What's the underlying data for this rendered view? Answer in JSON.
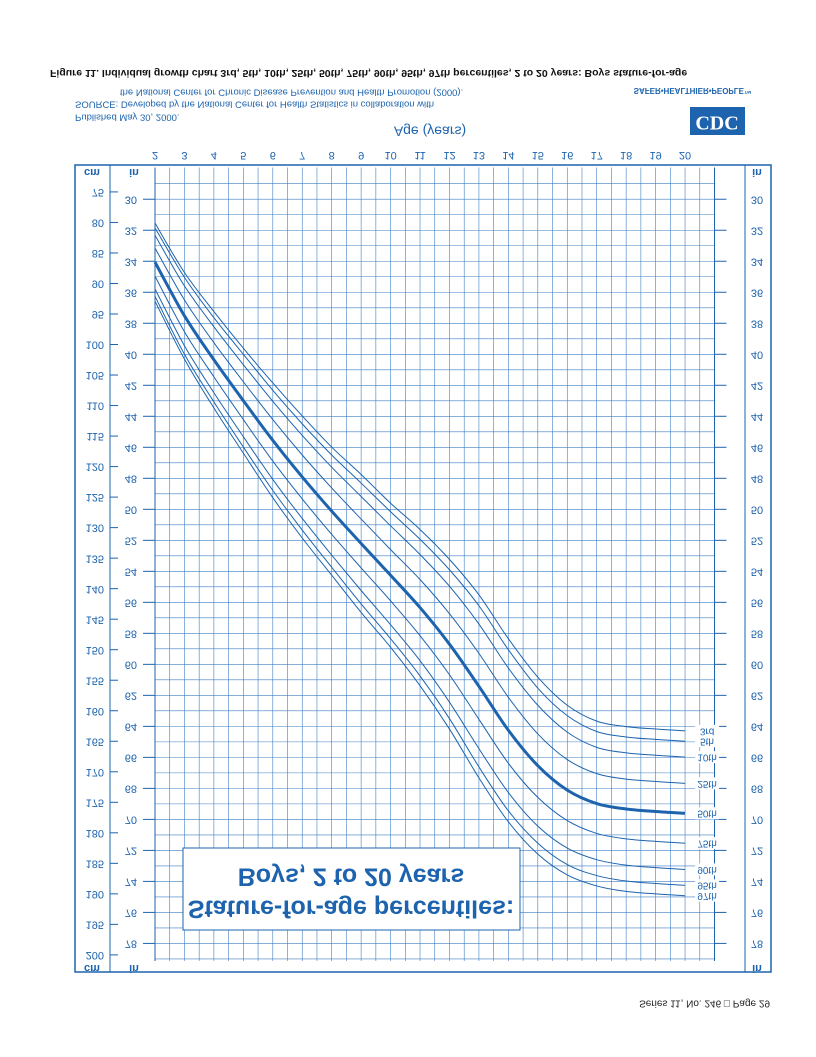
{
  "figure_caption": "Figure 11. Individual growth chart 3rd, 5th, 10th, 25th, 50th, 75th, 90th, 95th, 97th percentiles, 2 to 20 years: Boys stature-for-age",
  "published": "Published May 30, 2000.",
  "source_lines": [
    "SOURCE: Developed by the National Center for Health Statistics in collaboration with",
    "the National Center for Chronic Disease Prevention and Health Promotion (2000)."
  ],
  "logo": "CDC",
  "tagline": "SAFER•HEALTHIER•PEOPLE™",
  "footer": "Series 11, No. 246 □ Page 29",
  "chart_data": {
    "type": "line",
    "title": "Stature-for-age percentiles:",
    "subtitle": "Boys, 2 to 20 years",
    "x_label": "Age (years)",
    "y_label": "cm",
    "y2_label": "in",
    "x": [
      2,
      3,
      4,
      5,
      6,
      7,
      8,
      9,
      10,
      11,
      12,
      13,
      14,
      15,
      16,
      17,
      18,
      19,
      20
    ],
    "xlim": [
      2,
      21
    ],
    "xticks": [
      2,
      3,
      4,
      5,
      6,
      7,
      8,
      9,
      10,
      11,
      12,
      13,
      14,
      15,
      16,
      17,
      18,
      19,
      20
    ],
    "ylim": [
      71,
      201
    ],
    "yticks": [
      75,
      80,
      85,
      90,
      95,
      100,
      105,
      110,
      115,
      120,
      125,
      130,
      135,
      140,
      145,
      150,
      155,
      160,
      165,
      170,
      175,
      180,
      185,
      190,
      195,
      200
    ],
    "y2lim": [
      27.953,
      79.134
    ],
    "y2ticks": [
      30,
      32,
      34,
      36,
      38,
      40,
      42,
      44,
      46,
      48,
      50,
      52,
      54,
      56,
      58,
      60,
      62,
      64,
      66,
      68,
      70,
      72,
      74,
      76,
      78
    ],
    "grid": true,
    "series": [
      {
        "name": "3rd",
        "color": "#1d63ad",
        "line_width": 1,
        "values": [
          80.1,
          88.2,
          94.6,
          100.6,
          106.3,
          111.7,
          116.8,
          121.3,
          126.0,
          130.3,
          135.2,
          141.0,
          148.2,
          154.5,
          159.1,
          161.7,
          162.6,
          163.0,
          163.3
        ]
      },
      {
        "name": "5th",
        "color": "#1d63ad",
        "line_width": 1,
        "values": [
          80.9,
          89.0,
          95.6,
          101.6,
          107.5,
          113.0,
          118.1,
          122.7,
          127.4,
          131.9,
          136.9,
          142.8,
          150.0,
          156.3,
          160.8,
          163.4,
          164.3,
          164.7,
          165.0
        ]
      },
      {
        "name": "10th",
        "color": "#1d63ad",
        "line_width": 1,
        "values": [
          82.1,
          90.4,
          97.1,
          103.3,
          109.3,
          114.9,
          120.1,
          124.9,
          129.7,
          134.4,
          139.6,
          145.8,
          153.0,
          159.1,
          163.5,
          166.0,
          166.9,
          167.3,
          167.6
        ]
      },
      {
        "name": "25th",
        "color": "#1d63ad",
        "line_width": 1,
        "values": [
          84.2,
          92.7,
          99.7,
          106.1,
          112.3,
          118.1,
          123.5,
          128.6,
          133.6,
          138.5,
          144.1,
          150.6,
          157.8,
          163.8,
          168.0,
          170.3,
          171.2,
          171.6,
          171.9
        ]
      },
      {
        "name": "50th",
        "color": "#1d63ad",
        "line_width": 3,
        "values": [
          86.5,
          95.3,
          102.5,
          109.2,
          115.7,
          121.7,
          127.3,
          132.6,
          137.8,
          143.1,
          149.1,
          156.0,
          163.2,
          169.0,
          173.0,
          175.2,
          176.1,
          176.5,
          176.8
        ]
      },
      {
        "name": "75th",
        "color": "#1d63ad",
        "line_width": 1,
        "values": [
          88.8,
          97.9,
          105.3,
          112.3,
          119.1,
          125.3,
          131.1,
          136.6,
          142.0,
          147.7,
          154.1,
          161.4,
          168.6,
          174.2,
          178.0,
          180.1,
          181.0,
          181.4,
          181.7
        ]
      },
      {
        "name": "90th",
        "color": "#1d63ad",
        "line_width": 1,
        "values": [
          90.9,
          100.2,
          107.9,
          115.1,
          122.1,
          128.5,
          134.5,
          140.3,
          145.9,
          151.8,
          158.6,
          166.2,
          173.4,
          178.9,
          182.5,
          184.4,
          185.3,
          185.7,
          186.0
        ]
      },
      {
        "name": "95th",
        "color": "#1d63ad",
        "line_width": 1,
        "values": [
          92.1,
          101.6,
          109.4,
          116.8,
          123.9,
          130.4,
          136.5,
          142.5,
          148.2,
          154.3,
          161.3,
          169.2,
          176.4,
          181.7,
          185.2,
          187.0,
          187.9,
          188.3,
          188.6
        ]
      },
      {
        "name": "97th",
        "color": "#1d63ad",
        "line_width": 1,
        "values": [
          92.9,
          102.4,
          110.4,
          117.8,
          125.1,
          131.7,
          137.8,
          143.9,
          149.6,
          155.9,
          163.0,
          171.0,
          178.2,
          183.5,
          186.9,
          188.7,
          189.6,
          190.0,
          190.3
        ]
      }
    ]
  }
}
